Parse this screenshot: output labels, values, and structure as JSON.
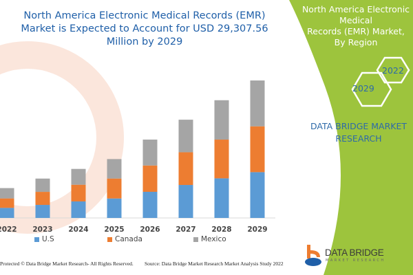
{
  "chart_data": {
    "type": "bar",
    "stacked": true,
    "title": "North America Electronic Medical Records (EMR) Market is Expected to Account for USD 29,307.56 Million by 2029",
    "categories": [
      "2022",
      "2023",
      "2024",
      "2025",
      "2026",
      "2027",
      "2028",
      "2029"
    ],
    "series": [
      {
        "name": "U.S",
        "color": "#5b9bd5",
        "values": [
          2150,
          2780,
          3520,
          4150,
          5570,
          7030,
          8440,
          9760
        ]
      },
      {
        "name": "Canada",
        "color": "#ed7d31",
        "values": [
          2010,
          2780,
          3560,
          4250,
          5610,
          6970,
          8260,
          9770
        ]
      },
      {
        "name": "Mexico",
        "color": "#a5a5a5",
        "values": [
          2200,
          2830,
          3370,
          4150,
          5520,
          6940,
          8390,
          9770
        ]
      }
    ],
    "xlabel": "",
    "ylabel": "",
    "grid": false,
    "legend_position": "bottom"
  },
  "panel": {
    "title": "North America Electronic Medical\nRecords (EMR) Market, By Region",
    "hex_years": [
      "2022",
      "2029"
    ],
    "brand": [
      "DATA BRIDGE MARKET",
      "RESEARCH"
    ],
    "color": "#9dc43d"
  },
  "logo": {
    "name": "DATA BRIDGE",
    "sub": "MARKET RESEARCH"
  },
  "footer": {
    "copyright": "Protected © Data Bridge Market Research- All Rights Reserved.",
    "source": "Source: Data Bridge Market Research Market Analysis Study 2022"
  }
}
